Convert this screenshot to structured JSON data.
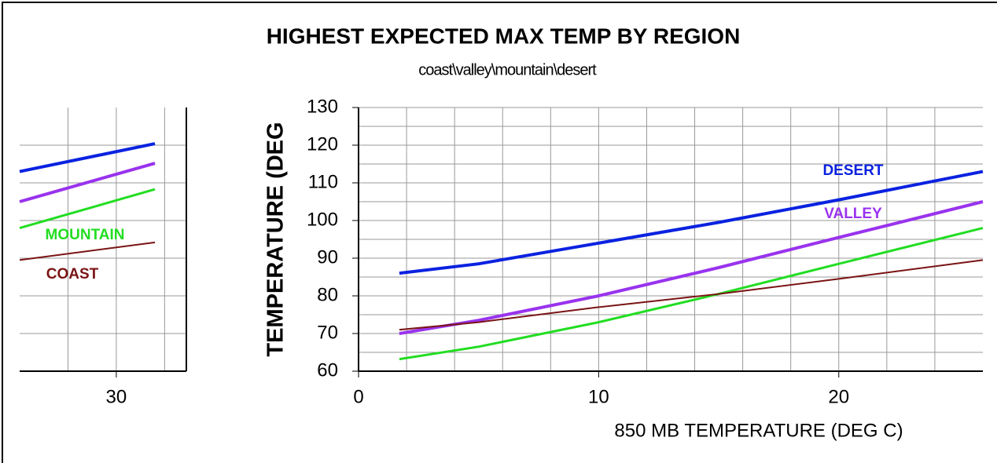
{
  "chart_data": [
    {
      "type": "line",
      "title": "HIGHEST EXPECTED MAX TEMP BY REGION",
      "subtitle": "coast\\valley\\mountain\\desert",
      "y_label": "TEMPERATURE (DEG",
      "x_label": "850 MB TEMPERATURE (DEG C)",
      "x": [
        1.7,
        5,
        10,
        15,
        20,
        26
      ],
      "series": [
        {
          "name": "DESERT",
          "color": "#0a22e0",
          "values": [
            86,
            88.5,
            94,
            99.5,
            105.5,
            113
          ]
        },
        {
          "name": "VALLEY",
          "color": "#9933ee",
          "values": [
            70,
            73.5,
            80,
            87.5,
            95.5,
            105
          ]
        },
        {
          "color": "#22dd22",
          "values": [
            63.2,
            66.5,
            73,
            80.5,
            88.5,
            98
          ]
        },
        {
          "color": "#7a1414",
          "values": [
            71,
            73,
            77,
            80.5,
            84.5,
            89.5
          ]
        }
      ],
      "xlim": [
        0,
        26
      ],
      "xticks": [
        0,
        10,
        20
      ],
      "x_minor_ticks": [
        2,
        4,
        6,
        8,
        12,
        14,
        16,
        18,
        22,
        24
      ],
      "ylim": [
        60,
        130
      ],
      "yticks": [
        60,
        70,
        80,
        90,
        100,
        110,
        120,
        130
      ],
      "y_minor_ticks": [
        65,
        75,
        85,
        95,
        105,
        115,
        125
      ],
      "grid": true
    },
    {
      "type": "line",
      "x": [
        26,
        31.6
      ],
      "series": [
        {
          "color": "#0a22e0",
          "values": [
            113,
            120.4
          ]
        },
        {
          "color": "#9933ee",
          "values": [
            105,
            115.2
          ]
        },
        {
          "name": "MOUNTAIN",
          "color": "#22dd22",
          "values": [
            98,
            108.3
          ]
        },
        {
          "name": "COAST",
          "color": "#7a1414",
          "values": [
            89.5,
            94.2
          ]
        }
      ],
      "xlim": [
        26,
        32.9
      ],
      "xticks": [
        30
      ],
      "x_minor_ticks": [
        28,
        32
      ],
      "ylim": [
        60,
        130
      ],
      "y_grid": [
        70,
        80,
        90,
        100,
        110,
        120
      ],
      "grid": true
    }
  ]
}
